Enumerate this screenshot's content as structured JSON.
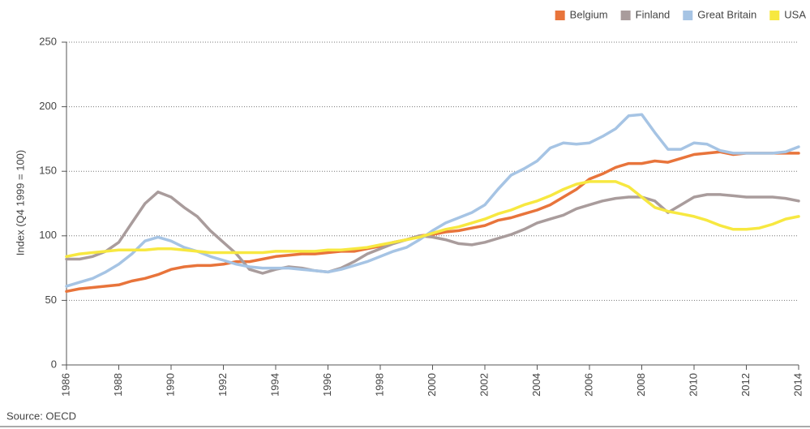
{
  "chart_data": {
    "type": "line",
    "y_label": "Index (Q4 1999 = 100)",
    "source": "Source: OECD",
    "x": [
      1986,
      1986.5,
      1987,
      1987.5,
      1988,
      1988.5,
      1989,
      1989.5,
      1990,
      1990.5,
      1991,
      1991.5,
      1992,
      1992.5,
      1993,
      1993.5,
      1994,
      1994.5,
      1995,
      1995.5,
      1996,
      1996.5,
      1997,
      1997.5,
      1998,
      1998.5,
      1999,
      1999.5,
      2000,
      2000.5,
      2001,
      2001.5,
      2002,
      2002.5,
      2003,
      2003.5,
      2004,
      2004.5,
      2005,
      2005.5,
      2006,
      2006.5,
      2007,
      2007.5,
      2008,
      2008.5,
      2009,
      2009.5,
      2010,
      2010.5,
      2011,
      2011.5,
      2012,
      2012.5,
      2013,
      2013.5,
      2014
    ],
    "series": [
      {
        "name": "Belgium",
        "color": "#e8743b",
        "values": [
          57,
          59,
          60,
          61,
          62,
          65,
          67,
          70,
          74,
          76,
          77,
          77,
          78,
          80,
          80,
          82,
          84,
          85,
          86,
          86,
          87,
          88,
          88,
          90,
          92,
          95,
          97,
          100,
          101,
          103,
          104,
          106,
          108,
          112,
          114,
          117,
          120,
          124,
          130,
          136,
          144,
          148,
          153,
          156,
          156,
          158,
          157,
          160,
          163,
          164,
          165,
          163,
          164,
          164,
          164,
          164,
          164
        ]
      },
      {
        "name": "Finland",
        "color": "#a99c9c",
        "values": [
          82,
          82,
          84,
          88,
          95,
          110,
          125,
          134,
          130,
          122,
          115,
          104,
          95,
          86,
          74,
          71,
          74,
          76,
          75,
          73,
          72,
          75,
          80,
          86,
          90,
          94,
          97,
          100,
          99,
          97,
          94,
          93,
          95,
          98,
          101,
          105,
          110,
          113,
          116,
          121,
          124,
          127,
          129,
          130,
          130,
          127,
          118,
          124,
          130,
          132,
          132,
          131,
          130,
          130,
          130,
          129,
          127
        ]
      },
      {
        "name": "Great Britain",
        "color": "#a6c4e4",
        "values": [
          61,
          64,
          67,
          72,
          78,
          86,
          96,
          99,
          96,
          91,
          88,
          84,
          81,
          78,
          76,
          75,
          75,
          75,
          74,
          73,
          72,
          74,
          77,
          80,
          84,
          88,
          91,
          97,
          104,
          110,
          114,
          118,
          124,
          136,
          147,
          152,
          158,
          168,
          172,
          171,
          172,
          177,
          183,
          193,
          194,
          180,
          167,
          167,
          172,
          171,
          166,
          164,
          164,
          164,
          164,
          165,
          169
        ]
      },
      {
        "name": "USA",
        "color": "#f7e840",
        "values": [
          84,
          86,
          87,
          88,
          89,
          89,
          89,
          90,
          90,
          89,
          88,
          87,
          87,
          87,
          87,
          87,
          88,
          88,
          88,
          88,
          89,
          89,
          90,
          91,
          93,
          95,
          97,
          99,
          102,
          105,
          107,
          110,
          113,
          117,
          120,
          124,
          127,
          131,
          136,
          140,
          142,
          142,
          142,
          138,
          130,
          122,
          119,
          117,
          115,
          112,
          108,
          105,
          105,
          106,
          109,
          113,
          115
        ]
      }
    ],
    "xlim": [
      1986,
      2014
    ],
    "xticks": [
      1986,
      1988,
      1990,
      1992,
      1994,
      1996,
      1998,
      2000,
      2002,
      2004,
      2006,
      2008,
      2010,
      2012,
      2014
    ],
    "ylim": [
      0,
      250
    ],
    "yticks": [
      0,
      50,
      100,
      150,
      200,
      250
    ],
    "grid": true,
    "legend": "top-right"
  }
}
